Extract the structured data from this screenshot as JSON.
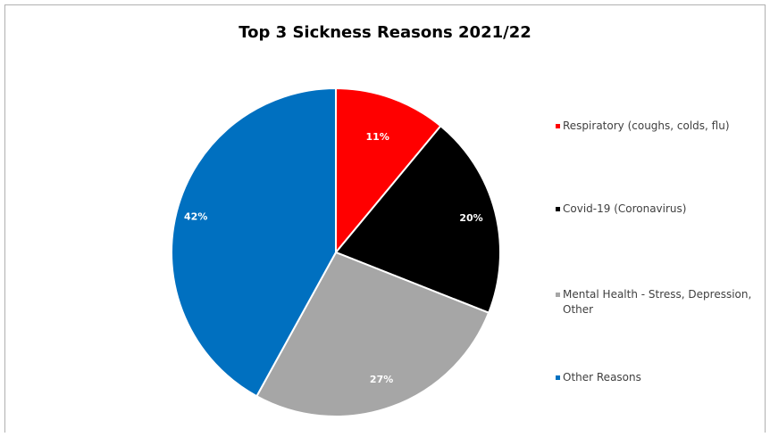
{
  "chart_data": {
    "type": "pie",
    "title": "Top 3 Sickness Reasons 2021/22",
    "categories": [
      "Respiratory (coughs, colds, flu)",
      "Covid-19 (Coronavirus)",
      "Mental Health - Stress, Depression, Other",
      "Other Reasons"
    ],
    "values": [
      11,
      20,
      27,
      42
    ],
    "data_labels": [
      "11%",
      "20%",
      "27%",
      "42%"
    ],
    "colors": [
      "#ff0000",
      "#000000",
      "#a6a6a6",
      "#0070c0"
    ],
    "start_angle": "12 o'clock",
    "direction": "clockwise",
    "legend_position": "right"
  }
}
